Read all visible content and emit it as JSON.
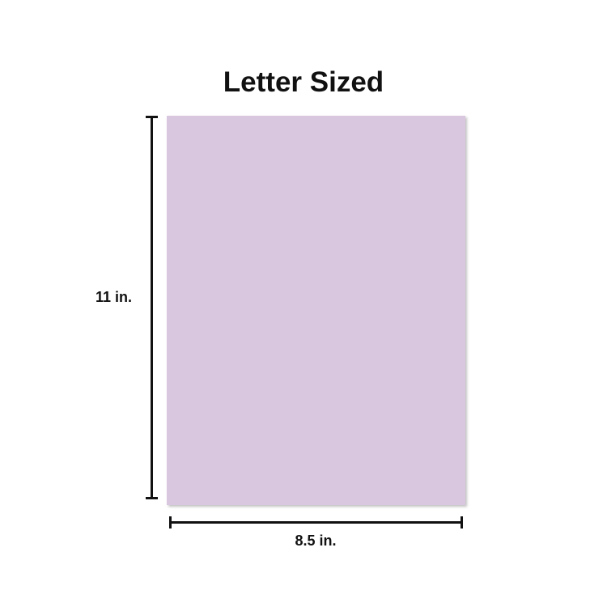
{
  "title": "Letter Sized",
  "paper_color": "#d9c6df",
  "height_label": "11 in.",
  "width_label": "8.5 in.",
  "dimensions": {
    "height": 11,
    "width": 8.5,
    "unit": "in."
  }
}
